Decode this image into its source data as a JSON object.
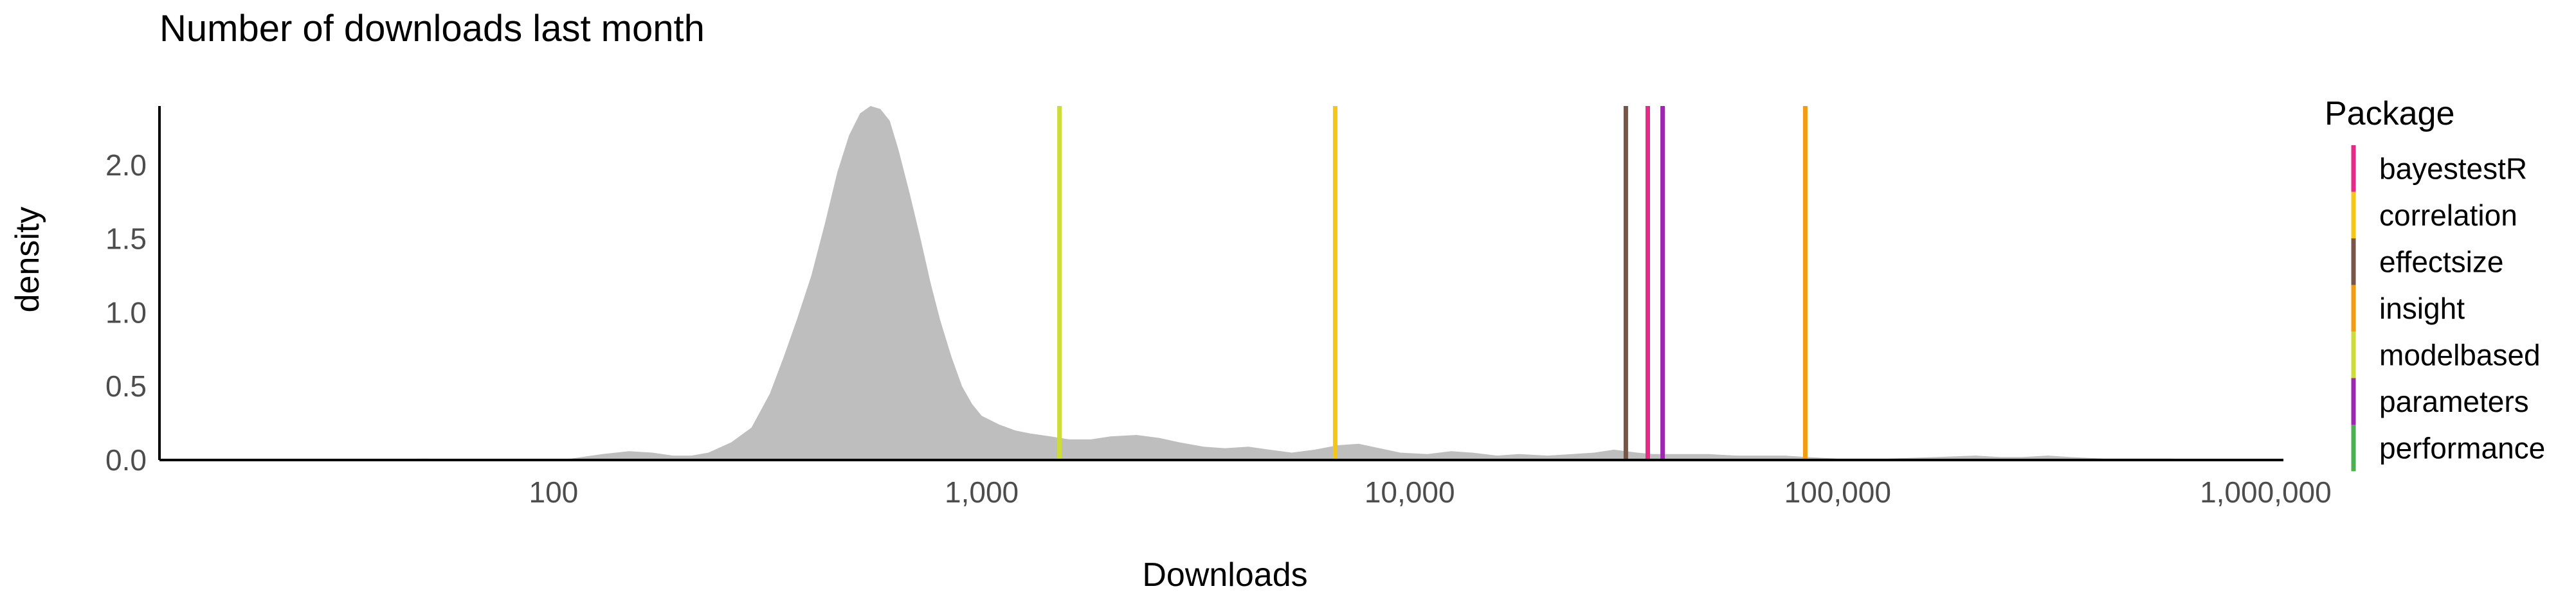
{
  "chart_data": {
    "type": "area",
    "title": "Number of downloads last month",
    "xlabel": "Downloads",
    "ylabel": "density",
    "x_scale": "log10",
    "xlim": [
      12,
      1100000
    ],
    "ylim": [
      0,
      2.4
    ],
    "x_ticks": [
      {
        "value": 100,
        "label": "100"
      },
      {
        "value": 1000,
        "label": "1,000"
      },
      {
        "value": 10000,
        "label": "10,000"
      },
      {
        "value": 100000,
        "label": "100,000"
      },
      {
        "value": 1000000,
        "label": "1,000,000"
      }
    ],
    "y_ticks": [
      {
        "value": 0.0,
        "label": "0.0"
      },
      {
        "value": 0.5,
        "label": "0.5"
      },
      {
        "value": 1.0,
        "label": "1.0"
      },
      {
        "value": 1.5,
        "label": "1.5"
      },
      {
        "value": 2.0,
        "label": "2.0"
      }
    ],
    "grid": false,
    "density": {
      "fill_color": "#bebebe",
      "x": [
        12,
        30,
        50,
        70,
        90,
        110,
        130,
        150,
        170,
        190,
        210,
        230,
        260,
        290,
        320,
        345,
        370,
        400,
        430,
        460,
        490,
        520,
        550,
        580,
        610,
        640,
        680,
        720,
        760,
        800,
        850,
        900,
        950,
        1000,
        1100,
        1200,
        1300,
        1450,
        1600,
        1800,
        2000,
        2300,
        2600,
        2900,
        3300,
        3700,
        4200,
        4700,
        5300,
        6000,
        6800,
        7600,
        8500,
        9500,
        11000,
        12500,
        14000,
        16000,
        18000,
        21000,
        24000,
        27000,
        30000,
        32000,
        34000,
        37000,
        40000,
        45000,
        50000,
        58000,
        65000,
        75000,
        85000,
        100000,
        130000,
        170000,
        210000,
        240000,
        270000,
        310000,
        350000,
        420000,
        500000,
        600000,
        750000,
        1000000,
        1100000
      ],
      "y": [
        0,
        0,
        0.01,
        0,
        0,
        0.01,
        0.04,
        0.06,
        0.05,
        0.03,
        0.03,
        0.05,
        0.12,
        0.22,
        0.45,
        0.7,
        0.95,
        1.25,
        1.6,
        1.95,
        2.2,
        2.35,
        2.4,
        2.38,
        2.3,
        2.1,
        1.8,
        1.5,
        1.2,
        0.95,
        0.7,
        0.5,
        0.38,
        0.3,
        0.24,
        0.2,
        0.18,
        0.16,
        0.14,
        0.14,
        0.16,
        0.17,
        0.15,
        0.12,
        0.09,
        0.08,
        0.09,
        0.07,
        0.05,
        0.07,
        0.1,
        0.11,
        0.08,
        0.05,
        0.04,
        0.06,
        0.05,
        0.03,
        0.04,
        0.03,
        0.04,
        0.05,
        0.07,
        0.06,
        0.05,
        0.04,
        0.04,
        0.04,
        0.04,
        0.03,
        0.03,
        0.03,
        0.02,
        0.01,
        0.01,
        0.02,
        0.03,
        0.02,
        0.02,
        0.03,
        0.02,
        0.01,
        0.01,
        0.01,
        0.0,
        0.0,
        0.0
      ]
    },
    "legend_title": "Package",
    "legend_position": "right",
    "series": [
      {
        "name": "bayestestR",
        "x": 36000,
        "color": "#e7298a"
      },
      {
        "name": "correlation",
        "x": 6700,
        "color": "#f5c518"
      },
      {
        "name": "effectsize",
        "x": 32000,
        "color": "#795548"
      },
      {
        "name": "insight",
        "x": 84000,
        "color": "#f39c12"
      },
      {
        "name": "modelbased",
        "x": 1520,
        "color": "#cddc39"
      },
      {
        "name": "parameters",
        "x": 39000,
        "color": "#9c27b0"
      },
      {
        "name": "performance",
        "x": null,
        "color": "#4caf50"
      }
    ]
  }
}
